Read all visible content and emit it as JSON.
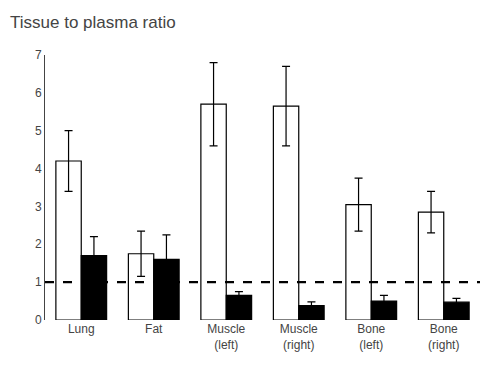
{
  "chart_data": {
    "type": "bar",
    "title": "Tissue to plasma ratio",
    "categories": [
      "Lung",
      "Fat",
      "Muscle\n(left)",
      "Muscle\n(right)",
      "Bone\n(left)",
      "Bone\n(right)"
    ],
    "series": [
      {
        "color": "#ffffff",
        "values": [
          4.2,
          1.75,
          5.7,
          5.65,
          3.05,
          2.85
        ],
        "errors": [
          0.8,
          0.6,
          1.1,
          1.05,
          0.7,
          0.55
        ]
      },
      {
        "color": "#000000",
        "values": [
          1.7,
          1.6,
          0.65,
          0.38,
          0.5,
          0.47
        ],
        "errors": [
          0.5,
          0.65,
          0.1,
          0.1,
          0.15,
          0.1
        ]
      }
    ],
    "reference_line": {
      "y": 1.0,
      "line_style": "dashed"
    },
    "ylim": [
      0,
      7
    ],
    "yticks": [
      0,
      1,
      2,
      3,
      4,
      5,
      6,
      7
    ],
    "grid": false
  }
}
